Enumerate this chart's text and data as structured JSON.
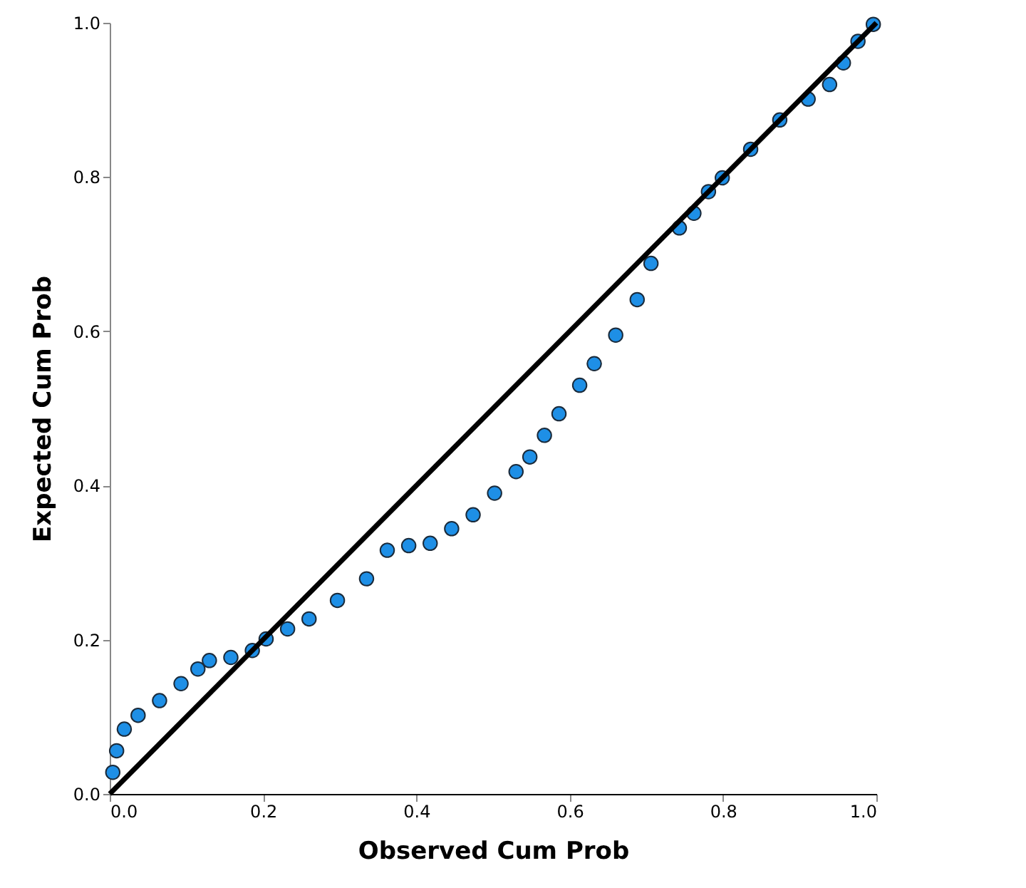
{
  "chart_data": {
    "type": "scatter",
    "xlabel": "Observed Cum Prob",
    "ylabel": "Expected Cum Prob",
    "xlim": [
      0,
      1
    ],
    "ylim": [
      0,
      1
    ],
    "xticks": [
      {
        "value": 0,
        "label": "0.0"
      },
      0.2,
      0.4,
      0.6,
      0.8,
      {
        "value": 1,
        "label": "1.0"
      }
    ],
    "yticks": [
      {
        "value": 0,
        "label": "0.0"
      },
      0.2,
      0.4,
      0.6,
      0.8,
      {
        "value": 1,
        "label": "1.0"
      }
    ],
    "grid": false,
    "series": [
      {
        "marker": "circle",
        "color": "#1e8fe6",
        "x": [
          0.004,
          0.009,
          0.019,
          0.037,
          0.065,
          0.093,
          0.115,
          0.13,
          0.158,
          0.186,
          0.204,
          0.232,
          0.26,
          0.297,
          0.335,
          0.362,
          0.39,
          0.418,
          0.446,
          0.474,
          0.502,
          0.53,
          0.548,
          0.567,
          0.586,
          0.613,
          0.632,
          0.66,
          0.688,
          0.706,
          0.743,
          0.762,
          0.781,
          0.799,
          0.836,
          0.874,
          0.911,
          0.939,
          0.957,
          0.976,
          0.996
        ],
        "values": [
          0.028,
          0.056,
          0.084,
          0.102,
          0.121,
          0.143,
          0.162,
          0.173,
          0.177,
          0.186,
          0.201,
          0.214,
          0.227,
          0.251,
          0.279,
          0.316,
          0.322,
          0.325,
          0.344,
          0.362,
          0.39,
          0.418,
          0.437,
          0.465,
          0.493,
          0.53,
          0.558,
          0.595,
          0.641,
          0.688,
          0.734,
          0.753,
          0.781,
          0.799,
          0.836,
          0.874,
          0.901,
          0.92,
          0.948,
          0.976,
          0.998
        ]
      },
      {
        "type": "line",
        "color": "#000000",
        "x": [
          0,
          1
        ],
        "values": [
          0,
          1
        ]
      }
    ]
  }
}
